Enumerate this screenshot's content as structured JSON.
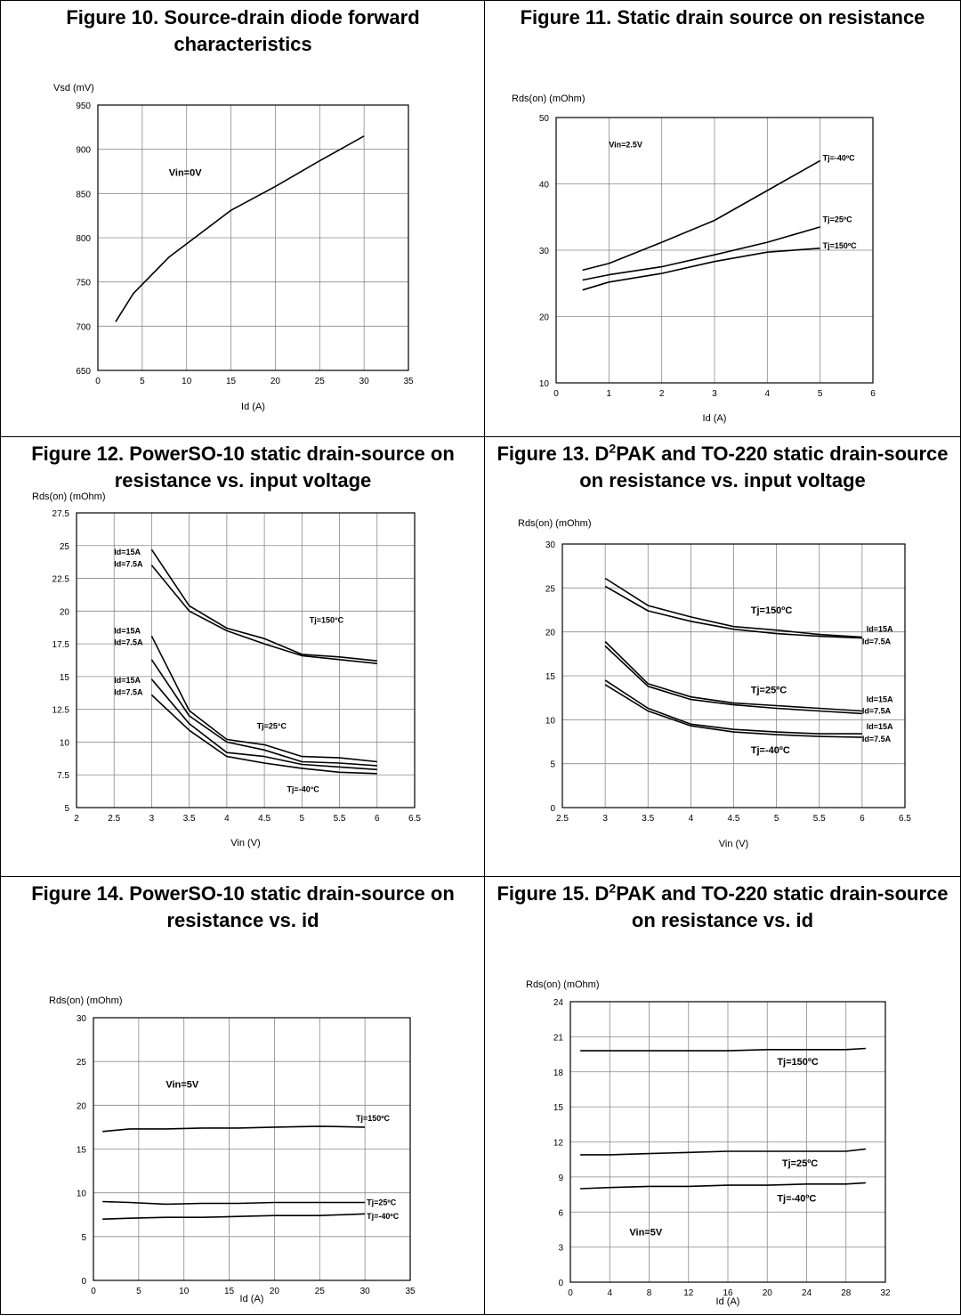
{
  "chart_data": [
    {
      "id": "fig10",
      "type": "line",
      "title": "Figure 10. Source-drain diode forward characteristics",
      "xlabel": "Id (A)",
      "ylabel": "Vsd (mV)",
      "xlim": [
        0,
        35
      ],
      "ylim": [
        650,
        950
      ],
      "xticks": [
        0,
        5,
        10,
        15,
        20,
        25,
        30,
        35
      ],
      "yticks": [
        650,
        700,
        750,
        800,
        850,
        900,
        950
      ],
      "grid": true,
      "series": [
        {
          "x": [
            2,
            4,
            8,
            15,
            20,
            25,
            30
          ],
          "y": [
            705,
            737,
            778,
            831,
            858,
            887,
            915
          ]
        }
      ],
      "annotations": [
        {
          "text": "Vin=0V",
          "x": 8,
          "y": 870,
          "style": "ann"
        }
      ]
    },
    {
      "id": "fig11",
      "type": "line",
      "title": "Figure 11. Static drain source on resistance",
      "xlabel": "Id (A)",
      "ylabel": "Rds(on) (mOhm)",
      "xlim": [
        0,
        6
      ],
      "ylim": [
        10,
        50
      ],
      "xticks": [
        0,
        1,
        2,
        3,
        4,
        5,
        6
      ],
      "yticks": [
        10,
        20,
        30,
        40,
        50
      ],
      "grid": true,
      "series": [
        {
          "name": "Tj=-40ºC",
          "x": [
            0.5,
            1,
            2,
            3,
            4,
            5
          ],
          "y": [
            27,
            28,
            31.2,
            34.5,
            39,
            43.5
          ]
        },
        {
          "name": "Tj=25ºC",
          "x": [
            0.5,
            1,
            2,
            3,
            4,
            5
          ],
          "y": [
            25.5,
            26.3,
            27.5,
            29.3,
            31.2,
            33.5
          ]
        },
        {
          "name": "Tj=150ºC",
          "x": [
            0.5,
            1,
            2,
            3,
            4,
            5
          ],
          "y": [
            24,
            25.2,
            26.5,
            28.3,
            29.7,
            30.3
          ]
        }
      ],
      "annotations": [
        {
          "text": "Vin=2.5V",
          "x": 1,
          "y": 45.5,
          "style": "ann-s"
        },
        {
          "text": "Tj=-40ºC",
          "x": 5.05,
          "y": 43.5,
          "style": "ann-s"
        },
        {
          "text": "Tj=25ºC",
          "x": 5.05,
          "y": 34.2,
          "style": "ann-s"
        },
        {
          "text": "Tj=150ºC",
          "x": 5.05,
          "y": 30.3,
          "style": "ann-s"
        }
      ]
    },
    {
      "id": "fig12",
      "type": "line",
      "title": "Figure 12. PowerSO-10 static drain-source on resistance vs. input voltage",
      "xlabel": "Vin (V)",
      "ylabel": "Rds(on) (mOhm)",
      "xlim": [
        2,
        6.5
      ],
      "ylim": [
        5,
        27.5
      ],
      "xticks": [
        2,
        2.5,
        3,
        3.5,
        4,
        4.5,
        5,
        5.5,
        6,
        6.5
      ],
      "yticks": [
        5,
        7.5,
        10,
        12.5,
        15,
        17.5,
        20,
        22.5,
        25,
        27.5
      ],
      "grid": true,
      "series": [
        {
          "x": [
            3,
            3.5,
            4,
            4.5,
            5,
            5.5,
            6
          ],
          "y": [
            24.7,
            20.4,
            18.7,
            17.9,
            16.7,
            16.5,
            16.2
          ]
        },
        {
          "x": [
            3,
            3.5,
            4,
            4.5,
            5,
            5.5,
            6
          ],
          "y": [
            23.5,
            20,
            18.5,
            17.5,
            16.6,
            16.3,
            16
          ]
        },
        {
          "x": [
            3,
            3.5,
            4,
            4.5,
            5,
            5.5,
            6
          ],
          "y": [
            18.1,
            12.4,
            10.2,
            9.8,
            8.9,
            8.8,
            8.5
          ]
        },
        {
          "x": [
            3,
            3.5,
            4,
            4.5,
            5,
            5.5,
            6
          ],
          "y": [
            16.3,
            12,
            10,
            9.4,
            8.5,
            8.4,
            8.2
          ]
        },
        {
          "x": [
            3,
            3.5,
            4,
            4.5,
            5,
            5.5,
            6
          ],
          "y": [
            14.8,
            11.4,
            9.2,
            8.9,
            8.3,
            8.1,
            7.9
          ]
        },
        {
          "x": [
            3,
            3.5,
            4,
            4.5,
            5,
            5.5,
            6
          ],
          "y": [
            13.6,
            10.9,
            8.9,
            8.4,
            8,
            7.7,
            7.6
          ]
        }
      ],
      "annotations": [
        {
          "text": "Id=15A",
          "x": 2.5,
          "y": 24.3,
          "style": "ann-s"
        },
        {
          "text": "Id=7.5A",
          "x": 2.5,
          "y": 23.4,
          "style": "ann-s"
        },
        {
          "text": "Id=15A",
          "x": 2.5,
          "y": 18.3,
          "style": "ann-s"
        },
        {
          "text": "Id=7.5A",
          "x": 2.5,
          "y": 17.4,
          "style": "ann-s"
        },
        {
          "text": "Id=15A",
          "x": 2.5,
          "y": 14.5,
          "style": "ann-s"
        },
        {
          "text": "Id=7.5A",
          "x": 2.5,
          "y": 13.6,
          "style": "ann-s"
        },
        {
          "text": "Tj=150°C",
          "x": 5.1,
          "y": 19.1,
          "style": "ann-s"
        },
        {
          "text": "Tj=25°C",
          "x": 4.4,
          "y": 11.0,
          "style": "ann-s"
        },
        {
          "text": "Tj=-40°C",
          "x": 4.8,
          "y": 6.2,
          "style": "ann-s"
        }
      ]
    },
    {
      "id": "fig13",
      "type": "line",
      "title_html": "Figure 13. D<sup>2</sup>PAK and TO-220 static drain-source on resistance vs. input voltage",
      "xlabel": "Vin (V)",
      "ylabel": "Rds(on) (mOhm)",
      "xlim": [
        2.5,
        6.5
      ],
      "ylim": [
        0,
        30
      ],
      "xticks": [
        2.5,
        3,
        3.5,
        4,
        4.5,
        5,
        5.5,
        6,
        6.5
      ],
      "yticks": [
        0,
        5,
        10,
        15,
        20,
        25,
        30
      ],
      "grid": true,
      "series": [
        {
          "x": [
            3,
            3.5,
            4,
            4.5,
            5,
            5.5,
            6
          ],
          "y": [
            26.1,
            23,
            21.7,
            20.6,
            20.2,
            19.7,
            19.4
          ]
        },
        {
          "x": [
            3,
            3.5,
            4,
            4.5,
            5,
            5.5,
            6
          ],
          "y": [
            25.2,
            22.4,
            21.2,
            20.3,
            19.8,
            19.5,
            19.3
          ]
        },
        {
          "x": [
            3,
            3.5,
            4,
            4.5,
            5,
            5.5,
            6
          ],
          "y": [
            18.9,
            14.1,
            12.6,
            11.9,
            11.6,
            11.3,
            11
          ]
        },
        {
          "x": [
            3,
            3.5,
            4,
            4.5,
            5,
            5.5,
            6
          ],
          "y": [
            18.4,
            13.8,
            12.3,
            11.7,
            11.3,
            11,
            10.7
          ]
        },
        {
          "x": [
            3,
            3.5,
            4,
            4.5,
            5,
            5.5,
            6
          ],
          "y": [
            14.5,
            11.3,
            9.5,
            8.9,
            8.6,
            8.4,
            8.4
          ]
        },
        {
          "x": [
            3,
            3.5,
            4,
            4.5,
            5,
            5.5,
            6
          ],
          "y": [
            14,
            11,
            9.3,
            8.6,
            8.3,
            8.1,
            8
          ]
        }
      ],
      "annotations": [
        {
          "text": "Tj=150ºC",
          "x": 4.7,
          "y": 22.1,
          "style": "ann"
        },
        {
          "text": "Tj=25ºC",
          "x": 4.7,
          "y": 13.0,
          "style": "ann"
        },
        {
          "text": "Tj=-40ºC",
          "x": 4.7,
          "y": 6.2,
          "style": "ann"
        },
        {
          "text": "Id=15A",
          "x": 6.05,
          "y": 20.0,
          "style": "ann-s"
        },
        {
          "text": "Id=7.5A",
          "x": 6.0,
          "y": 18.6,
          "style": "ann-s"
        },
        {
          "text": "Id=15A",
          "x": 6.05,
          "y": 12.0,
          "style": "ann-s"
        },
        {
          "text": "Id=7.5A",
          "x": 6.0,
          "y": 10.7,
          "style": "ann-s"
        },
        {
          "text": "Id=15A",
          "x": 6.05,
          "y": 8.9,
          "style": "ann-s"
        },
        {
          "text": "Id=7.5A",
          "x": 6.0,
          "y": 7.5,
          "style": "ann-s"
        }
      ]
    },
    {
      "id": "fig14",
      "type": "line",
      "title": "Figure 14. PowerSO-10 static drain-source on resistance vs. id",
      "xlabel": "Id (A)",
      "ylabel": "Rds(on) (mOhm)",
      "xlim": [
        0,
        35
      ],
      "ylim": [
        0,
        30
      ],
      "xticks": [
        0,
        5,
        10,
        15,
        20,
        25,
        30,
        35
      ],
      "yticks": [
        0,
        5,
        10,
        15,
        20,
        25,
        30
      ],
      "grid": true,
      "series": [
        {
          "name": "Tj=150ºC",
          "x": [
            1,
            4,
            8,
            12,
            16,
            20,
            25,
            30
          ],
          "y": [
            17,
            17.3,
            17.3,
            17.4,
            17.4,
            17.5,
            17.6,
            17.5
          ]
        },
        {
          "name": "Tj=25ºC",
          "x": [
            1,
            4,
            8,
            12,
            16,
            20,
            25,
            30
          ],
          "y": [
            9,
            8.9,
            8.7,
            8.8,
            8.8,
            8.9,
            8.9,
            8.9
          ]
        },
        {
          "name": "Tj=-40ºC",
          "x": [
            1,
            4,
            8,
            12,
            16,
            20,
            25,
            30
          ],
          "y": [
            7,
            7.1,
            7.2,
            7.2,
            7.3,
            7.4,
            7.4,
            7.6
          ]
        }
      ],
      "annotations": [
        {
          "text": "Vin=5V",
          "x": 8,
          "y": 22.0,
          "style": "ann"
        },
        {
          "text": "Tj=150ºC",
          "x": 29,
          "y": 18.2,
          "style": "ann-s"
        },
        {
          "text": "Tj=25ºC",
          "x": 30.2,
          "y": 8.6,
          "style": "ann-s"
        },
        {
          "text": "Tj=-40ºC",
          "x": 30.2,
          "y": 7.0,
          "style": "ann-s"
        }
      ]
    },
    {
      "id": "fig15",
      "type": "line",
      "title_html": "Figure 15. D<sup>2</sup>PAK and TO-220 static drain-source on resistance vs. id",
      "xlabel": "Id (A)",
      "ylabel": "Rds(on) (mOhm)",
      "xlim": [
        0,
        32
      ],
      "ylim": [
        0,
        24
      ],
      "xticks": [
        0,
        4,
        8,
        12,
        16,
        20,
        24,
        28,
        32
      ],
      "yticks": [
        0,
        3,
        6,
        9,
        12,
        15,
        18,
        21,
        24
      ],
      "grid": true,
      "series": [
        {
          "name": "Tj=150ºC",
          "x": [
            1,
            4,
            8,
            12,
            16,
            20,
            24,
            28,
            30
          ],
          "y": [
            19.8,
            19.8,
            19.8,
            19.8,
            19.8,
            19.9,
            19.9,
            19.9,
            20
          ]
        },
        {
          "name": "Tj=25ºC",
          "x": [
            1,
            4,
            8,
            12,
            16,
            20,
            24,
            28,
            30
          ],
          "y": [
            10.9,
            10.9,
            11,
            11.1,
            11.2,
            11.2,
            11.2,
            11.2,
            11.4
          ]
        },
        {
          "name": "Tj=-40ºC",
          "x": [
            1,
            4,
            8,
            12,
            16,
            20,
            24,
            28,
            30
          ],
          "y": [
            8,
            8.1,
            8.2,
            8.2,
            8.3,
            8.3,
            8.4,
            8.4,
            8.5
          ]
        }
      ],
      "annotations": [
        {
          "text": "Tj=150ºC",
          "x": 21,
          "y": 18.6,
          "style": "ann"
        },
        {
          "text": "Tj=25ºC",
          "x": 21.5,
          "y": 9.9,
          "style": "ann"
        },
        {
          "text": "Tj=-40ºC",
          "x": 21,
          "y": 6.9,
          "style": "ann"
        },
        {
          "text": "Vin=5V",
          "x": 6,
          "y": 4.0,
          "style": "ann"
        }
      ]
    }
  ]
}
